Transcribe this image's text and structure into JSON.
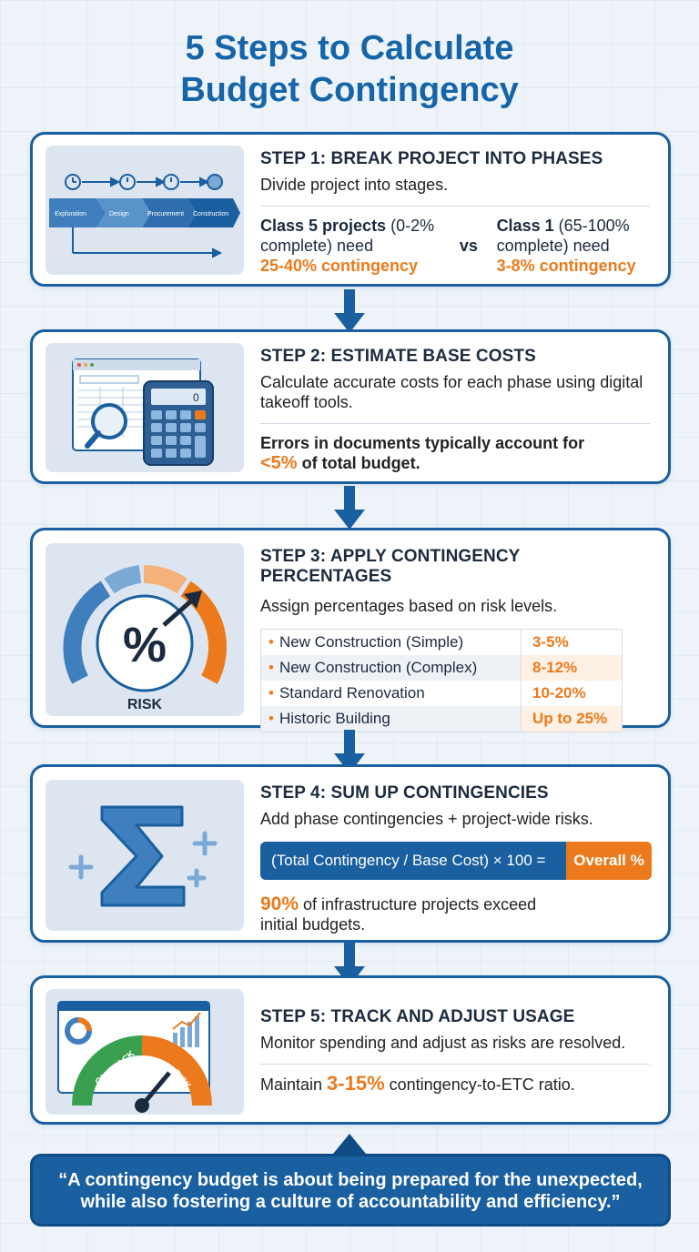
{
  "title": {
    "line1": "5 Steps to Calculate",
    "line2": "Budget Contingency"
  },
  "colors": {
    "primary_blue": "#1a5fa0",
    "accent_orange": "#ec7a1c",
    "title_blue": "#1565a8"
  },
  "step1": {
    "heading": "STEP 1: BREAK PROJECT INTO PHASES",
    "desc": "Divide project into stages.",
    "phases": [
      "Exploration",
      "Design",
      "Procurement",
      "Construction"
    ],
    "class5_text": "Class 5 projects (0-2% complete) need",
    "class5_bold": "Class 5 projects",
    "class5_rest": " (0-2% complete) need",
    "class5_value": "25-40% contingency",
    "vs": "vs",
    "class1_bold": "Class 1",
    "class1_rest": " (65-100% complete) need",
    "class1_value": "3-8% contingency",
    "icon": "phase-timeline-icon"
  },
  "step2": {
    "heading": "STEP 2: ESTIMATE BASE COSTS",
    "desc": "Calculate accurate costs for each phase using digital takeoff tools.",
    "note_prefix": "Errors in documents typically account for",
    "note_value": "<5%",
    "note_suffix": " of total budget.",
    "calc_display": "0",
    "icon": "calculator-icon"
  },
  "step3": {
    "heading": "STEP 3: APPLY CONTINGENCY PERCENTAGES",
    "desc": "Assign percentages based on risk levels.",
    "gauge_label": "RISK",
    "gauge_symbol": "%",
    "rows": [
      {
        "label": "New Construction (Simple)",
        "value": "3-5%"
      },
      {
        "label": "New Construction (Complex)",
        "value": "8-12%"
      },
      {
        "label": "Standard Renovation",
        "value": "10-20%"
      },
      {
        "label": "Historic Building",
        "value": "Up to 25%"
      }
    ],
    "icon": "risk-gauge-icon"
  },
  "step4": {
    "heading": "STEP 4: SUM UP CONTINGENCIES",
    "desc": "Add phase contingencies + project-wide risks.",
    "formula_left": "(Total Contingency / Base Cost) × 100 =",
    "formula_right": "Overall %",
    "stat_value": "90%",
    "stat_text": " of infrastructure projects exceed initial budgets.",
    "icon": "sigma-icon"
  },
  "step5": {
    "heading": "STEP 5: TRACK AND ADJUST USAGE",
    "desc": "Monitor spending and adjust as risks are resolved.",
    "note_prefix": "Maintain ",
    "note_value": "3-15%",
    "note_suffix": " contingency-to-ETC ratio.",
    "gauge_left": "ON TRACK",
    "gauge_right": "RISK",
    "icon": "dashboard-gauge-icon"
  },
  "quote": {
    "line1": "“A contingency budget is about being prepared for the unexpected,",
    "line2": "while also fostering a culture of accountability and efficiency.”"
  }
}
